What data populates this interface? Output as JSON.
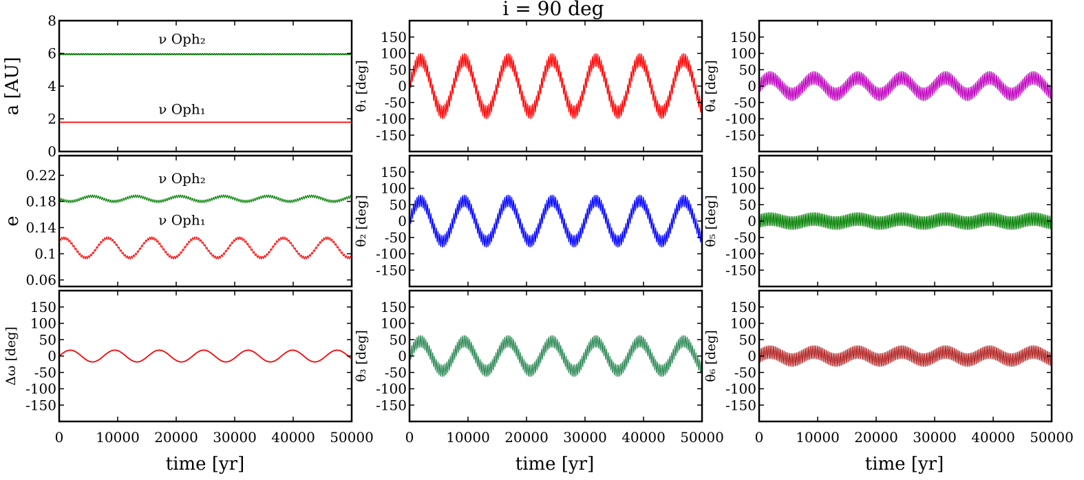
{
  "figure": {
    "suptitle": "i = 90 deg",
    "xlabel": "time [yr]",
    "xticks": [
      0,
      10000,
      20000,
      30000,
      40000,
      50000
    ],
    "xlim": [
      0,
      50000
    ]
  },
  "chart_data": [
    {
      "id": "a",
      "type": "line",
      "ylabel": "a [AU]",
      "ylim": [
        0,
        8
      ],
      "yticks": [
        0,
        2,
        4,
        6,
        8
      ],
      "annotations": [
        {
          "text": "ν Oph₂",
          "x": 21000,
          "y": 6.6
        },
        {
          "text": "ν Oph₁",
          "x": 21000,
          "y": 2.3
        }
      ],
      "series": [
        {
          "color": "#008000",
          "kind": "flat",
          "mean": 5.95,
          "long_amp": 0.0,
          "short_amp": 0.03,
          "long_period": 7500,
          "short_period": 400,
          "phase": 0
        },
        {
          "color": "#ff0000",
          "kind": "flat",
          "mean": 1.79,
          "long_amp": 0.0,
          "short_amp": 0.0,
          "long_period": 7500,
          "short_period": 400,
          "phase": 0
        }
      ]
    },
    {
      "id": "e",
      "type": "line",
      "ylabel": "e",
      "ylim": [
        0.05,
        0.25
      ],
      "yticks": [
        0.06,
        0.1,
        0.14,
        0.18,
        0.22
      ],
      "annotations": [
        {
          "text": "ν Oph₂",
          "x": 21000,
          "y": 0.208
        },
        {
          "text": "ν Oph₁",
          "x": 21000,
          "y": 0.144
        }
      ],
      "series": [
        {
          "color": "#008000",
          "kind": "osc",
          "mean": 0.184,
          "long_amp": 0.004,
          "short_amp": 0.002,
          "long_period": 7500,
          "short_period": 350,
          "phase": 3.14
        },
        {
          "color": "#ff0000",
          "kind": "osc",
          "mean": 0.109,
          "long_amp": 0.015,
          "short_amp": 0.002,
          "long_period": 7500,
          "short_period": 350,
          "phase": 0.9
        }
      ]
    },
    {
      "id": "dw",
      "type": "line",
      "ylabel": "Δω [deg]",
      "ylim": [
        -200,
        200
      ],
      "yticks": [
        -150,
        -100,
        -50,
        0,
        50,
        100,
        150
      ],
      "annotations": [],
      "series": [
        {
          "color": "#ff0000",
          "kind": "osc",
          "mean": 0,
          "long_amp": 18,
          "short_amp": 0,
          "long_period": 7600,
          "short_period": 400,
          "phase": 0
        }
      ]
    },
    {
      "id": "t1",
      "type": "line",
      "ylabel": "θ₁ [deg]",
      "ylim": [
        -200,
        200
      ],
      "yticks": [
        -150,
        -100,
        -50,
        0,
        50,
        100,
        150
      ],
      "annotations": [],
      "series": [
        {
          "color": "#ff0000",
          "kind": "osc",
          "mean": 0,
          "long_amp": 80,
          "short_amp": 20,
          "long_period": 7500,
          "short_period": 300,
          "phase": 0
        }
      ]
    },
    {
      "id": "t2",
      "type": "line",
      "ylabel": "θ₂ [deg]",
      "ylim": [
        -200,
        200
      ],
      "yticks": [
        -150,
        -100,
        -50,
        0,
        50,
        100,
        150
      ],
      "annotations": [],
      "series": [
        {
          "color": "#0000ff",
          "kind": "osc",
          "mean": 0,
          "long_amp": 62,
          "short_amp": 18,
          "long_period": 7500,
          "short_period": 300,
          "phase": 0
        }
      ]
    },
    {
      "id": "t3",
      "type": "line",
      "ylabel": "θ₃ [deg]",
      "ylim": [
        -200,
        200
      ],
      "yticks": [
        -150,
        -100,
        -50,
        0,
        50,
        100,
        150
      ],
      "annotations": [],
      "series": [
        {
          "color": "#2e8b57",
          "kind": "osc",
          "mean": 0,
          "long_amp": 45,
          "short_amp": 18,
          "long_period": 7500,
          "short_period": 300,
          "phase": 0
        }
      ]
    },
    {
      "id": "t4",
      "type": "line",
      "ylabel": "θ₄ [deg]",
      "ylim": [
        -200,
        200
      ],
      "yticks": [
        -150,
        -100,
        -50,
        0,
        50,
        100,
        150
      ],
      "annotations": [],
      "series": [
        {
          "color": "#bf00bf",
          "kind": "osc",
          "mean": 0,
          "long_amp": 25,
          "short_amp": 20,
          "long_period": 7500,
          "short_period": 300,
          "phase": 0
        }
      ]
    },
    {
      "id": "t5",
      "type": "line",
      "ylabel": "θ₅ [deg]",
      "ylim": [
        -200,
        200
      ],
      "yticks": [
        -150,
        -100,
        -50,
        0,
        50,
        100,
        150
      ],
      "annotations": [],
      "series": [
        {
          "color": "#008000",
          "kind": "osc",
          "mean": 0,
          "long_amp": 6,
          "short_amp": 20,
          "long_period": 7500,
          "short_period": 300,
          "phase": 0
        }
      ]
    },
    {
      "id": "t6",
      "type": "line",
      "ylabel": "θ₆ [deg]",
      "ylim": [
        -200,
        200
      ],
      "yticks": [
        -150,
        -100,
        -50,
        0,
        50,
        100,
        150
      ],
      "annotations": [],
      "series": [
        {
          "color": "#b22222",
          "kind": "osc",
          "mean": 0,
          "long_amp": 12,
          "short_amp": 20,
          "long_period": 7500,
          "short_period": 300,
          "phase": 0
        }
      ]
    }
  ]
}
